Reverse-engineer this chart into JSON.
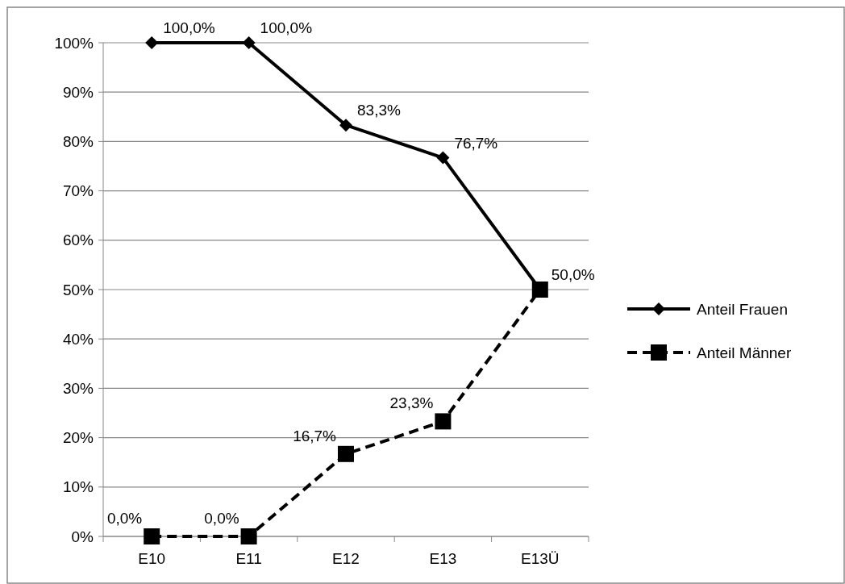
{
  "chart_data": {
    "type": "line",
    "categories": [
      "E10",
      "E11",
      "E12",
      "E13",
      "E13Ü"
    ],
    "series": [
      {
        "name": "Anteil Frauen",
        "color": "#000000",
        "values": [
          100,
          100,
          83.3,
          76.7,
          50
        ],
        "value_labels": [
          "100,0%",
          "100,0%",
          "83,3%",
          "76,7%",
          "50,0%"
        ],
        "marker": "diamond",
        "line_style": "solid"
      },
      {
        "name": "Anteil Männer",
        "color": "#000000",
        "values": [
          0,
          0,
          16.7,
          23.3,
          50
        ],
        "value_labels": [
          "0,0%",
          "0,0%",
          "16,7%",
          "23,3%",
          null
        ],
        "marker": "square",
        "line_style": "dashed"
      }
    ],
    "ylim": [
      0,
      100
    ],
    "yticks": [
      {
        "value": 0,
        "label": "0%"
      },
      {
        "value": 10,
        "label": "10%"
      },
      {
        "value": 20,
        "label": "20%"
      },
      {
        "value": 30,
        "label": "30%"
      },
      {
        "value": 40,
        "label": "40%"
      },
      {
        "value": 50,
        "label": "50%"
      },
      {
        "value": 60,
        "label": "60%"
      },
      {
        "value": 70,
        "label": "70%"
      },
      {
        "value": 80,
        "label": "80%"
      },
      {
        "value": 90,
        "label": "90%"
      },
      {
        "value": 100,
        "label": "100%"
      }
    ],
    "grid": "y",
    "legend": "right"
  }
}
